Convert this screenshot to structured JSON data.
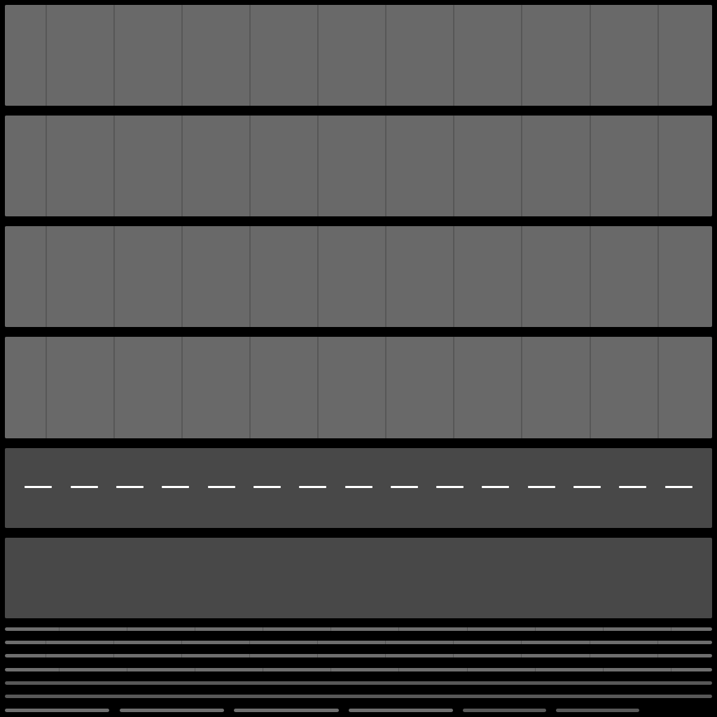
{
  "texture_sheet": {
    "tiles": [
      {
        "kind": "sidewalk",
        "color": "#696969"
      },
      {
        "kind": "sidewalk",
        "color": "#696969"
      },
      {
        "kind": "sidewalk",
        "color": "#696969"
      },
      {
        "kind": "sidewalk",
        "color": "#696969"
      },
      {
        "kind": "road-dashed-center",
        "color": "#484848",
        "marking_color": "#ffffff"
      },
      {
        "kind": "road-plain",
        "color": "#484848"
      }
    ],
    "curb_strips": 6,
    "small_strips": 6,
    "background_color": "#000000"
  }
}
